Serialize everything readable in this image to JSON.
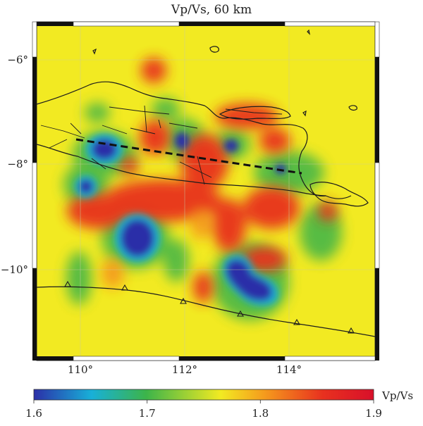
{
  "map": {
    "title": "Vp/Vs, 60 km",
    "lon_ticks": [
      "110°",
      "112°",
      "114°"
    ],
    "lat_ticks": [
      "−6°",
      "−8°",
      "−10°"
    ],
    "background_color": "#f2ea22",
    "profile_line": "dashed"
  },
  "colorbar": {
    "label": "Vp/Vs",
    "min": 1.6,
    "max": 1.9,
    "tick_labels": [
      "1.6",
      "1.7",
      "1.8",
      "1.9"
    ],
    "colors": [
      "#2b2fa8",
      "#18b0d8",
      "#3cb44a",
      "#f2ea22",
      "#e8311f",
      "#d8102a"
    ]
  }
}
